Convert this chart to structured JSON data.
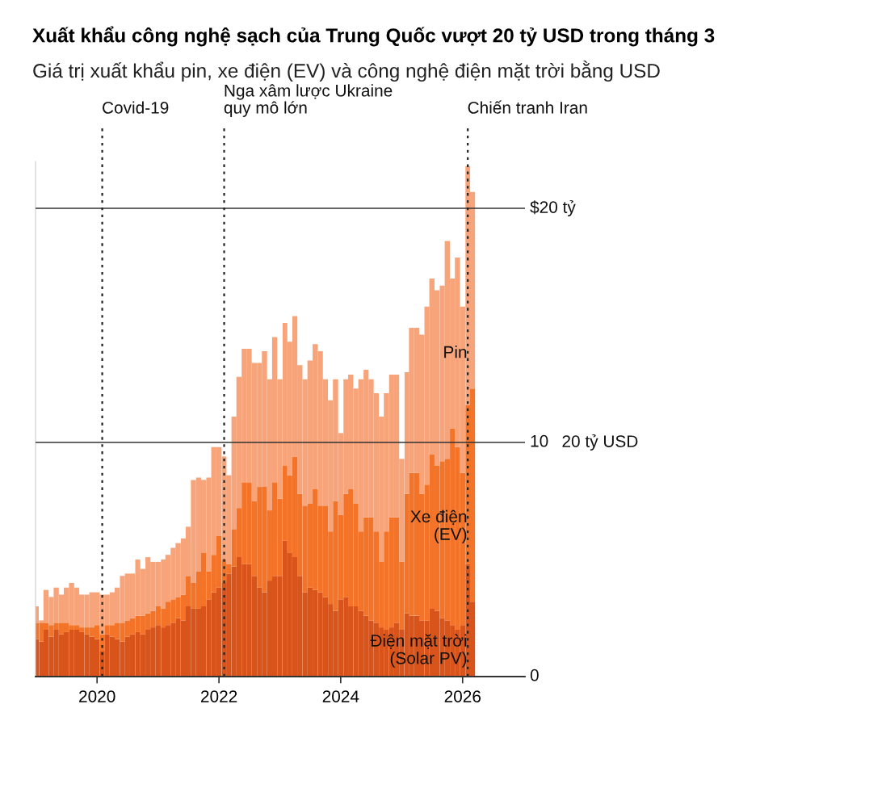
{
  "chart_data": {
    "type": "bar",
    "stacked": true,
    "title": "Xuất khẩu công nghệ sạch của Trung Quốc vượt 20 tỷ USD trong tháng 3",
    "subtitle": "Giá trị xuất khẩu pin, xe điện (EV) và công nghệ điện mặt trời bằng USD",
    "x": [
      "2019-01",
      "2019-02",
      "2019-03",
      "2019-04",
      "2019-05",
      "2019-06",
      "2019-07",
      "2019-08",
      "2019-09",
      "2019-10",
      "2019-11",
      "2019-12",
      "2020-01",
      "2020-02",
      "2020-03",
      "2020-04",
      "2020-05",
      "2020-06",
      "2020-07",
      "2020-08",
      "2020-09",
      "2020-10",
      "2020-11",
      "2020-12",
      "2021-01",
      "2021-02",
      "2021-03",
      "2021-04",
      "2021-05",
      "2021-06",
      "2021-07",
      "2021-08",
      "2021-09",
      "2021-10",
      "2021-11",
      "2021-12",
      "2022-01",
      "2022-02",
      "2022-03",
      "2022-04",
      "2022-05",
      "2022-06",
      "2022-07",
      "2022-08",
      "2022-09",
      "2022-10",
      "2022-11",
      "2022-12",
      "2023-01",
      "2023-02",
      "2023-03",
      "2023-04",
      "2023-05",
      "2023-06",
      "2023-07",
      "2023-08",
      "2023-09",
      "2023-10",
      "2023-11",
      "2023-12",
      "2024-01",
      "2024-02",
      "2024-03",
      "2024-04",
      "2024-05",
      "2024-06",
      "2024-07",
      "2024-08",
      "2024-09",
      "2024-10",
      "2024-11",
      "2024-12",
      "2025-01",
      "2025-02",
      "2025-03",
      "2025-04",
      "2025-05",
      "2025-06",
      "2025-07",
      "2025-08",
      "2025-09",
      "2025-10",
      "2025-11",
      "2025-12",
      "2026-01",
      "2026-02",
      "2026-03"
    ],
    "series": [
      {
        "name": "Điện mặt trời\n(Solar PV)",
        "color": "#d9541b",
        "values": [
          1.6,
          1.5,
          2.0,
          1.7,
          2.0,
          1.8,
          1.9,
          2.0,
          2.0,
          1.9,
          1.8,
          1.7,
          1.6,
          1.1,
          1.8,
          1.7,
          1.6,
          1.5,
          1.7,
          1.8,
          1.9,
          1.8,
          2.0,
          2.1,
          2.2,
          2.1,
          2.2,
          2.3,
          2.5,
          2.4,
          3.0,
          2.9,
          2.9,
          3.0,
          3.3,
          3.6,
          3.8,
          4.0,
          4.4,
          4.7,
          5.1,
          4.8,
          4.8,
          4.3,
          3.8,
          3.6,
          4.1,
          4.3,
          4.3,
          5.8,
          5.3,
          5.1,
          4.3,
          3.6,
          3.8,
          3.7,
          3.6,
          3.4,
          3.1,
          2.8,
          3.3,
          3.4,
          3.0,
          3.0,
          2.8,
          2.6,
          2.4,
          2.3,
          2.1,
          2.0,
          2.1,
          2.3,
          2.0,
          2.7,
          2.6,
          2.6,
          2.4,
          2.4,
          2.9,
          2.8,
          2.5,
          2.4,
          2.2,
          2.0,
          2.2,
          4.8,
          3.2
        ]
      },
      {
        "name": "Xe điện\n(EV)",
        "color": "#f37428",
        "values": [
          0.7,
          0.8,
          0.3,
          0.5,
          0.3,
          0.5,
          0.4,
          0.2,
          0.2,
          0.2,
          0.3,
          0.4,
          0.6,
          0.7,
          0.4,
          0.5,
          0.7,
          0.8,
          0.7,
          0.7,
          0.7,
          0.8,
          0.7,
          0.7,
          0.8,
          0.8,
          1.0,
          1.0,
          0.9,
          1.1,
          1.3,
          1.1,
          1.6,
          2.3,
          1.2,
          1.6,
          2.2,
          1.0,
          0.4,
          1.6,
          2.1,
          3.5,
          3.5,
          3.2,
          4.3,
          4.5,
          3.0,
          4.0,
          3.3,
          3.2,
          3.3,
          4.3,
          3.5,
          3.7,
          3.6,
          4.3,
          3.7,
          3.9,
          3.1,
          4.7,
          3.6,
          4.4,
          5.0,
          4.4,
          3.4,
          4.2,
          4.4,
          3.9,
          2.8,
          4.2,
          4.7,
          4.5,
          2.9,
          5.1,
          6.1,
          6.1,
          5.4,
          5.8,
          6.6,
          6.2,
          6.7,
          6.9,
          8.4,
          7.8,
          6.5,
          6.8,
          9.1
        ]
      },
      {
        "name": "Pin",
        "color": "#f8a47a",
        "values": [
          0.7,
          0.1,
          1.4,
          1.2,
          1.5,
          1.2,
          1.5,
          1.8,
          1.6,
          1.4,
          1.4,
          1.5,
          1.4,
          1.7,
          1.3,
          1.4,
          1.5,
          2.0,
          2.0,
          1.9,
          2.4,
          2.0,
          2.4,
          2.1,
          1.9,
          2.1,
          2.0,
          2.2,
          2.3,
          2.4,
          2.1,
          4.4,
          4.0,
          3.1,
          4.0,
          4.6,
          3.8,
          4.4,
          3.8,
          4.8,
          5.6,
          5.7,
          5.7,
          5.9,
          5.3,
          5.8,
          5.6,
          6.2,
          5.1,
          6.1,
          5.7,
          6.0,
          5.5,
          5.4,
          6.1,
          6.2,
          6.6,
          5.4,
          5.6,
          5.2,
          3.5,
          4.9,
          4.9,
          4.9,
          6.5,
          6.3,
          5.9,
          5.9,
          6.2,
          5.9,
          6.1,
          6.1,
          4.4,
          5.2,
          6.2,
          6.2,
          6.8,
          7.6,
          7.5,
          7.5,
          7.5,
          9.3,
          6.4,
          8.1,
          7.1,
          10.2,
          8.4
        ]
      }
    ],
    "xlim": [
      "2018-12-28",
      "2027-01-10"
    ],
    "xticks": [
      {
        "value": "2020-01-01",
        "label": "2020"
      },
      {
        "value": "2022-01-01",
        "label": "2022"
      },
      {
        "value": "2024-01-01",
        "label": "2024"
      },
      {
        "value": "2026-01-01",
        "label": "2026"
      }
    ],
    "ylim": [
      0,
      22
    ],
    "yticks": [
      0,
      10,
      {
        "value": 20,
        "label": "$20 tỷ"
      }
    ],
    "grid": "y",
    "legend": false,
    "ref_lines": [
      {
        "axis": "x",
        "value": "2020-02-01",
        "label": "Covid-19",
        "line_style": "dotted",
        "color": "#222222"
      },
      {
        "axis": "x",
        "value": "2022-02-01",
        "label": "Nga xâm lược Ukraine\nquy mô lớn",
        "line_style": "dotted",
        "color": "#222222"
      },
      {
        "axis": "x",
        "value": "2026-02-01",
        "label": "Chiến tranh Iran",
        "line_style": "dotted",
        "color": "#222222"
      }
    ],
    "annotations": [
      "20 tỷ USD"
    ]
  }
}
